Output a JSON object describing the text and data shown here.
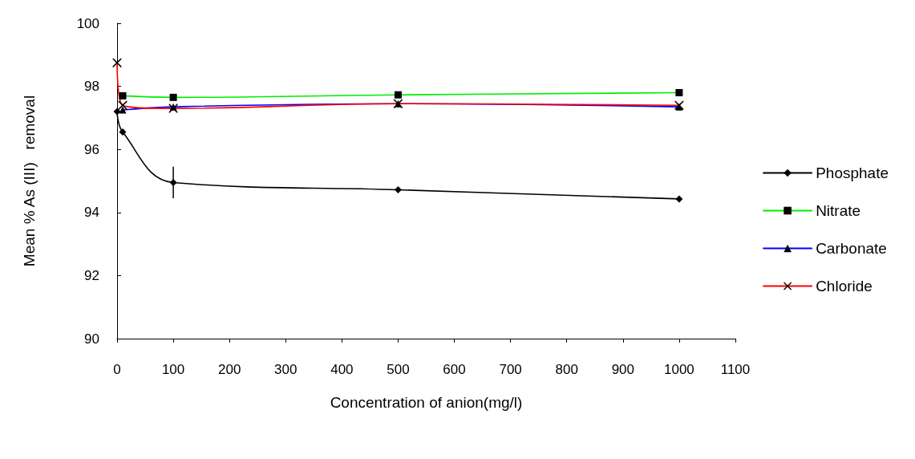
{
  "chart_data": {
    "type": "line",
    "xlabel": "Concentration of anion(mg/l)",
    "ylabel": "Mean % As (III)   removal",
    "x": [
      0,
      10,
      100,
      500,
      1000
    ],
    "series": [
      {
        "name": "Phosphate",
        "color": "#000000",
        "marker": "diamond",
        "values": [
          97.2,
          96.55,
          94.95,
          94.72,
          94.43
        ],
        "errors": [
          null,
          null,
          0.5,
          null,
          null
        ]
      },
      {
        "name": "Nitrate",
        "color": "#00ee00",
        "marker": "square",
        "values": [
          null,
          97.7,
          97.65,
          97.73,
          97.8
        ]
      },
      {
        "name": "Carbonate",
        "color": "#0000ff",
        "marker": "triangle",
        "values": [
          null,
          97.25,
          97.35,
          97.45,
          97.35
        ]
      },
      {
        "name": "Chloride",
        "color": "#ff0000",
        "marker": "cross",
        "values": [
          98.75,
          97.4,
          97.3,
          97.45,
          97.4
        ]
      }
    ],
    "xlim": [
      0,
      1100
    ],
    "xticks": [
      0,
      100,
      200,
      300,
      400,
      500,
      600,
      700,
      800,
      900,
      1000,
      1100
    ],
    "ylim": [
      90,
      100
    ],
    "yticks": [
      90,
      92,
      94,
      96,
      98,
      100
    ],
    "grid": false,
    "legend": "right"
  }
}
